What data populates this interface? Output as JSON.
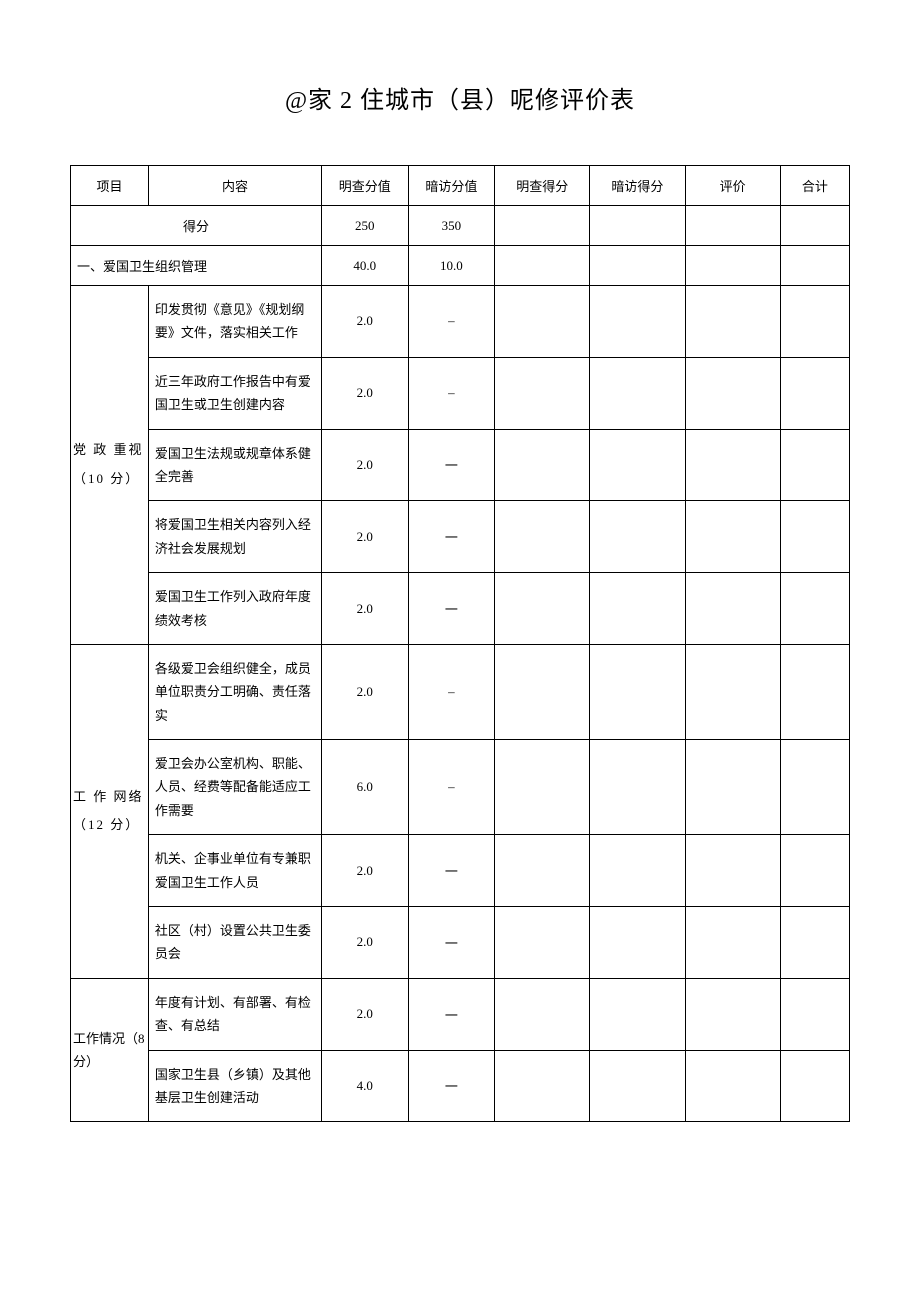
{
  "title": "@家 2 住城市（县）呢修评价表",
  "headers": {
    "project": "项目",
    "content": "内容",
    "mc_val": "明查分值",
    "af_val": "暗访分值",
    "mc_score": "明查得分",
    "af_score": "暗访得分",
    "eval": "评价",
    "total": "合计"
  },
  "score_row": {
    "label": "得分",
    "mc": "250",
    "af": "350"
  },
  "section1": {
    "title": "一、爱国卫生组织管理",
    "mc": "40.0",
    "af": "10.0"
  },
  "group1": {
    "label": "党 政 重视\n（10 分）",
    "rows": [
      {
        "content": "印发贯彻《意见》《规划纲要》文件，落实相关工作",
        "mc": "2.0",
        "af": "–"
      },
      {
        "content": "近三年政府工作报告中有爱国卫生或卫生创建内容",
        "mc": "2.0",
        "af": "–"
      },
      {
        "content": "爱国卫生法规或规章体系健全完善",
        "mc": "2.0",
        "af": "一"
      },
      {
        "content": "将爱国卫生相关内容列入经济社会发展规划",
        "mc": "2.0",
        "af": "一"
      },
      {
        "content": "爱国卫生工作列入政府年度绩效考核",
        "mc": "2.0",
        "af": "一"
      }
    ]
  },
  "group2": {
    "label": "工 作 网络\n（12 分）",
    "rows": [
      {
        "content": "各级爱卫会组织健全，成员单位职责分工明确、责任落实",
        "mc": "2.0",
        "af": "–"
      },
      {
        "content": "爱卫会办公室机构、职能、人员、经费等配备能适应工作需要",
        "mc": "6.0",
        "af": "–"
      },
      {
        "content": "机关、企事业单位有专兼职爱国卫生工作人员",
        "mc": "2.0",
        "af": "一"
      },
      {
        "content": "社区（村）设置公共卫生委员会",
        "mc": "2.0",
        "af": "一"
      }
    ]
  },
  "group3": {
    "label": "工作情况（8 分）",
    "rows": [
      {
        "content": "年度有计划、有部署、有检查、有总结",
        "mc": "2.0",
        "af": "一"
      },
      {
        "content": "国家卫生县（乡镇）及其他基层卫生创建活动",
        "mc": "4.0",
        "af": "一"
      }
    ]
  },
  "colors": {
    "background": "#ffffff",
    "text": "#000000",
    "border": "#000000"
  },
  "typography": {
    "title_fontsize": 24,
    "cell_fontsize": 13,
    "font_family": "SimSun"
  }
}
